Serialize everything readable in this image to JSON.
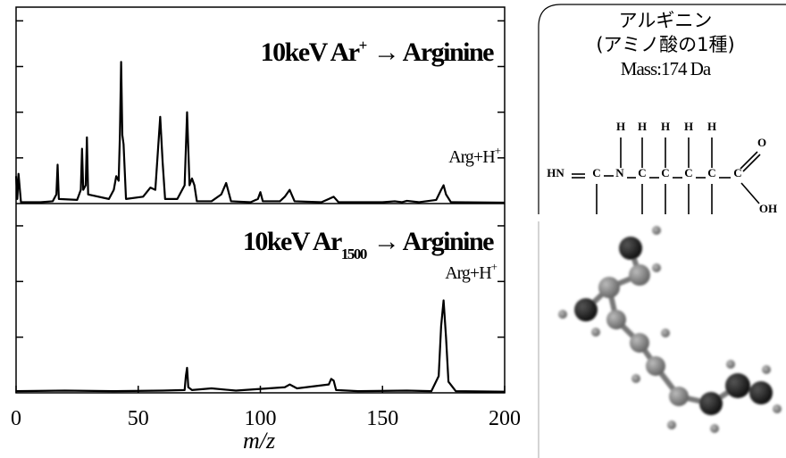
{
  "chart_data": [
    {
      "type": "line",
      "title_parts": [
        "10keV Ar",
        "+",
        "→ Arginine"
      ],
      "annotation_parts": [
        "Arg+H",
        "+"
      ],
      "color": "#000",
      "xlim": [
        0,
        200
      ],
      "ylim": [
        0,
        4.3
      ],
      "yticks": [
        1,
        2,
        3,
        4
      ],
      "x": [
        0,
        0.5,
        1,
        2,
        10,
        15,
        16.5,
        17,
        17.5,
        25,
        26.5,
        27,
        27.5,
        28.5,
        29,
        29.5,
        38,
        40,
        41,
        42,
        42.5,
        43,
        43.5,
        44,
        45,
        52,
        55,
        57,
        58,
        59,
        60,
        61,
        66,
        69,
        70,
        71,
        72,
        73,
        74,
        80,
        84,
        86,
        88,
        96,
        99,
        100,
        101,
        108,
        110,
        112,
        114,
        125,
        128,
        130,
        132,
        150,
        155,
        158,
        160,
        165,
        172,
        174,
        175,
        176,
        178,
        200
      ],
      "values": [
        0.6,
        0.1,
        0.65,
        0.03,
        0.03,
        0.05,
        0.2,
        0.85,
        0.1,
        0.08,
        0.3,
        1.2,
        0.3,
        0.4,
        1.45,
        0.2,
        0.1,
        0.3,
        0.6,
        0.5,
        1.5,
        3.1,
        1.5,
        1.3,
        0.1,
        0.15,
        0.35,
        0.3,
        1.1,
        1.9,
        0.9,
        0.1,
        0.1,
        0.4,
        2.0,
        0.4,
        0.55,
        0.4,
        0.05,
        0.05,
        0.2,
        0.45,
        0.05,
        0.03,
        0.1,
        0.25,
        0.05,
        0.05,
        0.15,
        0.3,
        0.05,
        0.03,
        0.1,
        0.15,
        0.03,
        0.03,
        0.05,
        0.03,
        0.06,
        0.03,
        0.08,
        0.3,
        0.4,
        0.2,
        0.03,
        0.02
      ]
    },
    {
      "type": "line",
      "title_parts": [
        "10keV Ar",
        "1500",
        "→ Arginine"
      ],
      "annotation_parts": [
        "Arg+H",
        "+"
      ],
      "color": "#000",
      "xlim": [
        0,
        200
      ],
      "ylim": [
        0,
        3.4
      ],
      "yticks": [
        1,
        2,
        3
      ],
      "xticks": [
        0,
        50,
        100,
        150,
        200
      ],
      "xlabel": "m/z",
      "x": [
        0,
        20,
        40,
        60,
        69,
        69.5,
        70,
        70.5,
        72,
        80,
        90,
        110,
        112,
        115,
        128,
        129,
        130,
        131,
        140,
        160,
        170,
        173,
        174,
        175,
        176,
        177,
        180,
        200
      ],
      "values": [
        0.03,
        0.04,
        0.03,
        0.04,
        0.05,
        0.3,
        0.45,
        0.1,
        0.05,
        0.08,
        0.04,
        0.1,
        0.15,
        0.08,
        0.15,
        0.25,
        0.22,
        0.05,
        0.03,
        0.04,
        0.03,
        0.3,
        1.2,
        1.66,
        1.0,
        0.2,
        0.03,
        0.02
      ]
    }
  ],
  "info_panel": {
    "name": "アルギニン",
    "note": "(アミノ酸の1種)",
    "mass": "Mass:174 Da",
    "formula": [
      "H",
      "H",
      "H",
      "H",
      "H",
      "HN",
      "C",
      "N",
      "C",
      "C",
      "C",
      "C",
      "C",
      "O",
      "OH"
    ]
  }
}
